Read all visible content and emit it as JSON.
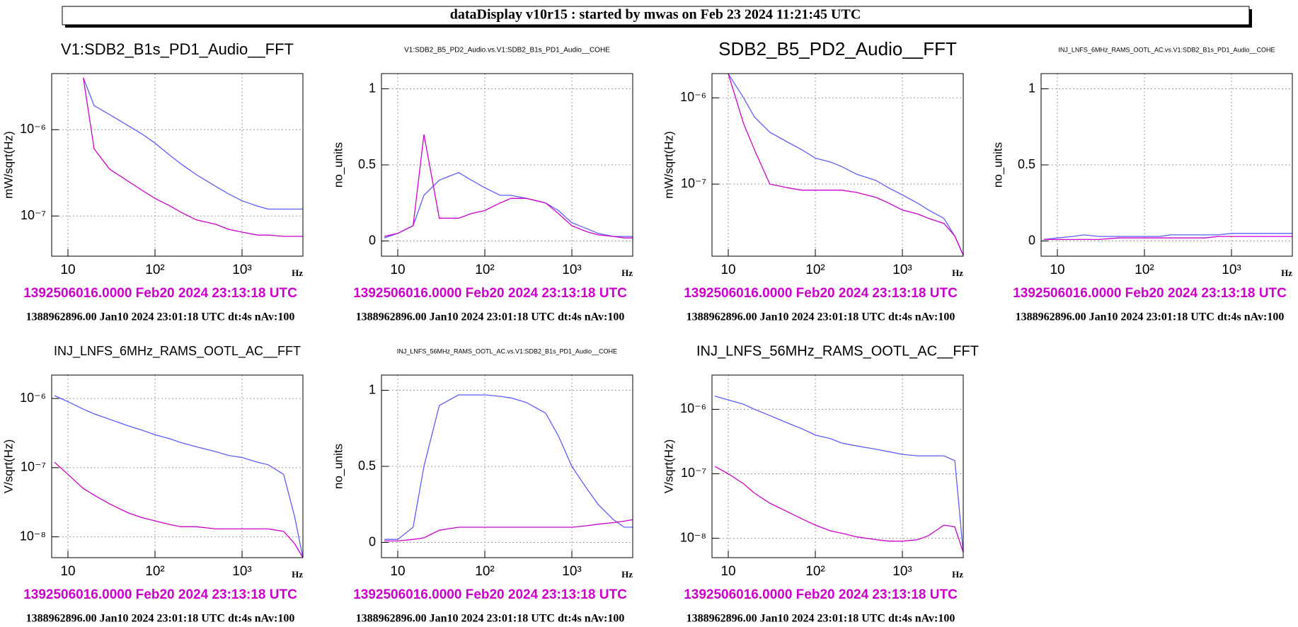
{
  "header": {
    "title": "dataDisplay v10r15 : started by mwas on Feb 23 2024 11:21:45 UTC"
  },
  "chart_data": [
    {
      "type": "line",
      "title": "V1:SDB2_B1s_PD1_Audio__FFT",
      "ylabel": "mW/sqrt(Hz)",
      "xlabel": "Hz",
      "log_x": true,
      "log_y": true,
      "grid": true,
      "xlim": [
        6.5,
        5000
      ],
      "xticks": [
        10,
        {
          "value": 100,
          "label": "10²"
        },
        {
          "value": 1000,
          "label": "10³"
        }
      ],
      "ylim": [
        3.42e-08,
        4.47e-06
      ],
      "yticks": [
        {
          "value": 1e-07,
          "label": "10⁻⁷"
        },
        {
          "value": 1e-06,
          "label": "10⁻⁶"
        }
      ],
      "x": [
        7,
        10,
        15,
        20,
        30,
        50,
        70,
        100,
        150,
        200,
        300,
        500,
        700,
        1000,
        1500,
        2000,
        3000,
        4000,
        5000
      ],
      "series": [
        {
          "color": "#5c5cff",
          "values": [
            null,
            null,
            4e-06,
            1.9e-06,
            1.5e-06,
            1.1e-06,
            9e-07,
            7e-07,
            5e-07,
            4e-07,
            3e-07,
            2.2e-07,
            1.8e-07,
            1.5e-07,
            1.3e-07,
            1.2e-07,
            1.2e-07,
            1.2e-07,
            1.2e-07
          ]
        },
        {
          "color": "#cc00cc",
          "values": [
            null,
            null,
            4e-06,
            6e-07,
            3.5e-07,
            2.5e-07,
            2e-07,
            1.6e-07,
            1.3e-07,
            1.1e-07,
            9e-08,
            8e-08,
            7e-08,
            6.5e-08,
            6e-08,
            6e-08,
            5.8e-08,
            5.8e-08,
            5.8e-08
          ]
        }
      ],
      "annotations": [
        "1392506016.0000 Feb20 2024 23:13:18 UTC",
        "1388962896.00 Jan10 2024 23:01:18 UTC dt:4s nAv:100"
      ]
    },
    {
      "type": "line",
      "title": "V1:SDB2_B5_PD2_Audio.vs.V1:SDB2_B1s_PD1_Audio__COHE",
      "ylabel": "no_units",
      "xlabel": "Hz",
      "log_x": true,
      "log_y": false,
      "grid": true,
      "xlim": [
        6.5,
        5000
      ],
      "xticks": [
        10,
        {
          "value": 100,
          "label": "10²"
        },
        {
          "value": 1000,
          "label": "10³"
        }
      ],
      "ylim": [
        -0.1,
        1.1
      ],
      "yticks": [
        0,
        0.5,
        1
      ],
      "x": [
        7,
        10,
        15,
        20,
        30,
        50,
        70,
        100,
        150,
        200,
        300,
        500,
        700,
        1000,
        1500,
        2000,
        3000,
        4000,
        5000
      ],
      "series": [
        {
          "color": "#5c5cff",
          "values": [
            0.02,
            0.05,
            0.1,
            0.3,
            0.4,
            0.45,
            0.4,
            0.35,
            0.3,
            0.3,
            0.28,
            0.25,
            0.2,
            0.12,
            0.08,
            0.05,
            0.03,
            0.03,
            0.03
          ]
        },
        {
          "color": "#cc00cc",
          "values": [
            0.03,
            0.05,
            0.1,
            0.7,
            0.15,
            0.15,
            0.18,
            0.2,
            0.25,
            0.28,
            0.28,
            0.25,
            0.18,
            0.1,
            0.06,
            0.04,
            0.03,
            0.02,
            0.02
          ]
        }
      ],
      "annotations": [
        "1392506016.0000 Feb20 2024 23:13:18 UTC",
        "1388962896.00 Jan10 2024 23:01:18 UTC dt:4s nAv:100"
      ]
    },
    {
      "type": "line",
      "title": "SDB2_B5_PD2_Audio__FFT",
      "ylabel": "mW/sqrt(Hz)",
      "xlabel": "Hz",
      "log_x": true,
      "log_y": true,
      "grid": true,
      "xlim": [
        6.5,
        5000
      ],
      "xticks": [
        10,
        {
          "value": 100,
          "label": "10²"
        },
        {
          "value": 1000,
          "label": "10³"
        }
      ],
      "ylim": [
        1.46e-08,
        1.91e-06
      ],
      "yticks": [
        {
          "value": 1e-07,
          "label": "10⁻⁷"
        },
        {
          "value": 1e-06,
          "label": "10⁻⁶"
        }
      ],
      "x": [
        7,
        10,
        15,
        20,
        30,
        50,
        70,
        100,
        150,
        200,
        300,
        500,
        700,
        1000,
        1500,
        2000,
        3000,
        4000,
        5000
      ],
      "series": [
        {
          "color": "#5c5cff",
          "values": [
            null,
            1.9e-06,
            1e-06,
            6e-07,
            4e-07,
            3e-07,
            2.5e-07,
            2e-07,
            1.8e-07,
            1.6e-07,
            1.3e-07,
            1.1e-07,
            9e-08,
            7.5e-08,
            6e-08,
            5e-08,
            4e-08,
            2.5e-08,
            1.5e-08
          ]
        },
        {
          "color": "#cc00cc",
          "values": [
            null,
            1.9e-06,
            5e-07,
            2.5e-07,
            1e-07,
            9e-08,
            8.5e-08,
            8.5e-08,
            8.5e-08,
            8.5e-08,
            8e-08,
            7e-08,
            6e-08,
            5e-08,
            4.5e-08,
            4e-08,
            3.5e-08,
            2.5e-08,
            1.5e-08
          ]
        }
      ],
      "annotations": [
        "1392506016.0000 Feb20 2024 23:13:18 UTC",
        "1388962896.00 Jan10 2024 23:01:18 UTC dt:4s nAv:100"
      ]
    },
    {
      "type": "line",
      "title": "INJ_LNFS_6MHz_RAMS_OOTL_AC.vs.V1:SDB2_B1s_PD1_Audio__COHE",
      "ylabel": "no_units",
      "xlabel": "Hz",
      "log_x": true,
      "log_y": false,
      "grid": true,
      "xlim": [
        6.5,
        5000
      ],
      "xticks": [
        10,
        {
          "value": 100,
          "label": "10²"
        },
        {
          "value": 1000,
          "label": "10³"
        }
      ],
      "ylim": [
        -0.1,
        1.1
      ],
      "yticks": [
        0,
        0.5,
        1
      ],
      "x": [
        7,
        10,
        15,
        20,
        30,
        50,
        70,
        100,
        150,
        200,
        300,
        500,
        700,
        1000,
        1500,
        2000,
        3000,
        4000,
        5000
      ],
      "series": [
        {
          "color": "#5c5cff",
          "values": [
            0.01,
            0.02,
            0.03,
            0.04,
            0.03,
            0.03,
            0.03,
            0.03,
            0.03,
            0.04,
            0.04,
            0.04,
            0.04,
            0.05,
            0.05,
            0.05,
            0.05,
            0.05,
            0.05
          ]
        },
        {
          "color": "#cc00cc",
          "values": [
            0.01,
            0.01,
            0.01,
            0.01,
            0.01,
            0.02,
            0.02,
            0.02,
            0.02,
            0.02,
            0.02,
            0.02,
            0.03,
            0.03,
            0.03,
            0.03,
            0.03,
            0.03,
            0.03
          ]
        }
      ],
      "annotations": [
        "1392506016.0000 Feb20 2024 23:13:18 UTC",
        "1388962896.00 Jan10 2024 23:01:18 UTC dt:4s nAv:100"
      ]
    },
    {
      "type": "line",
      "title": "INJ_LNFS_6MHz_RAMS_OOTL_AC__FFT",
      "ylabel": "V/sqrt(Hz)",
      "xlabel": "Hz",
      "log_x": true,
      "log_y": true,
      "grid": true,
      "xlim": [
        6.5,
        5000
      ],
      "xticks": [
        10,
        {
          "value": 100,
          "label": "10²"
        },
        {
          "value": 1000,
          "label": "10³"
        }
      ],
      "ylim": [
        5e-09,
        2.18e-06
      ],
      "yticks": [
        {
          "value": 1e-08,
          "label": "10⁻⁸"
        },
        {
          "value": 1e-07,
          "label": "10⁻⁷"
        },
        {
          "value": 1e-06,
          "label": "10⁻⁶"
        }
      ],
      "x": [
        7,
        10,
        15,
        20,
        30,
        50,
        70,
        100,
        150,
        200,
        300,
        500,
        700,
        1000,
        1500,
        2000,
        3000,
        4000,
        5000
      ],
      "series": [
        {
          "color": "#5c5cff",
          "values": [
            1.1e-06,
            9e-07,
            7e-07,
            6e-07,
            5e-07,
            4e-07,
            3.5e-07,
            3e-07,
            2.6e-07,
            2.3e-07,
            2e-07,
            1.7e-07,
            1.5e-07,
            1.4e-07,
            1.2e-07,
            1.1e-07,
            8e-08,
            2e-08,
            5e-09
          ]
        },
        {
          "color": "#cc00cc",
          "values": [
            1.2e-07,
            8e-08,
            5e-08,
            4e-08,
            3e-08,
            2.2e-08,
            1.9e-08,
            1.7e-08,
            1.5e-08,
            1.4e-08,
            1.4e-08,
            1.3e-08,
            1.3e-08,
            1.3e-08,
            1.3e-08,
            1.3e-08,
            1.2e-08,
            8e-09,
            5e-09
          ]
        }
      ],
      "annotations": [
        "1392506016.0000 Feb20 2024 23:13:18 UTC",
        "1388962896.00 Jan10 2024 23:01:18 UTC dt:4s nAv:100"
      ]
    },
    {
      "type": "line",
      "title": "INJ_LNFS_56MHz_RAMS_OOTL_AC.vs.V1:SDB2_B1s_PD1_Audio__COHE",
      "ylabel": "no_units",
      "xlabel": "Hz",
      "log_x": true,
      "log_y": false,
      "grid": true,
      "xlim": [
        6.5,
        5000
      ],
      "xticks": [
        10,
        {
          "value": 100,
          "label": "10²"
        },
        {
          "value": 1000,
          "label": "10³"
        }
      ],
      "ylim": [
        -0.1,
        1.1
      ],
      "yticks": [
        0,
        0.5,
        1
      ],
      "x": [
        7,
        10,
        15,
        20,
        30,
        50,
        70,
        100,
        150,
        200,
        300,
        500,
        700,
        1000,
        1500,
        2000,
        3000,
        4000,
        5000
      ],
      "series": [
        {
          "color": "#5c5cff",
          "values": [
            0.02,
            0.02,
            0.1,
            0.5,
            0.9,
            0.97,
            0.97,
            0.97,
            0.96,
            0.95,
            0.92,
            0.85,
            0.7,
            0.5,
            0.35,
            0.25,
            0.15,
            0.1,
            0.1
          ]
        },
        {
          "color": "#cc00cc",
          "values": [
            0.01,
            0.01,
            0.02,
            0.03,
            0.08,
            0.1,
            0.1,
            0.1,
            0.1,
            0.1,
            0.1,
            0.1,
            0.1,
            0.1,
            0.11,
            0.12,
            0.13,
            0.14,
            0.15
          ]
        }
      ],
      "annotations": [
        "1392506016.0000 Feb20 2024 23:13:18 UTC",
        "1388962896.00 Jan10 2024 23:01:18 UTC dt:4s nAv:100"
      ]
    },
    {
      "type": "line",
      "title": "INJ_LNFS_56MHz_RAMS_OOTL_AC__FFT",
      "ylabel": "V/sqrt(Hz)",
      "xlabel": "Hz",
      "log_x": true,
      "log_y": true,
      "grid": true,
      "xlim": [
        6.5,
        5000
      ],
      "xticks": [
        10,
        {
          "value": 100,
          "label": "10²"
        },
        {
          "value": 1000,
          "label": "10³"
        }
      ],
      "ylim": [
        5e-09,
        3.4e-06
      ],
      "yticks": [
        {
          "value": 1e-08,
          "label": "10⁻⁸"
        },
        {
          "value": 1e-07,
          "label": "10⁻⁷"
        },
        {
          "value": 1e-06,
          "label": "10⁻⁶"
        }
      ],
      "x": [
        7,
        10,
        15,
        20,
        30,
        50,
        70,
        100,
        150,
        200,
        300,
        500,
        700,
        1000,
        1500,
        2000,
        3000,
        4000,
        5000
      ],
      "series": [
        {
          "color": "#5c5cff",
          "values": [
            1.6e-06,
            1.4e-06,
            1.2e-06,
            1e-06,
            8e-07,
            6e-07,
            5e-07,
            4e-07,
            3.5e-07,
            3e-07,
            2.7e-07,
            2.4e-07,
            2.2e-07,
            2e-07,
            1.9e-07,
            1.9e-07,
            1.9e-07,
            1.6e-07,
            6e-09
          ]
        },
        {
          "color": "#cc00cc",
          "values": [
            1.3e-07,
            1e-07,
            7e-08,
            5e-08,
            3.5e-08,
            2.5e-08,
            2e-08,
            1.6e-08,
            1.3e-08,
            1.2e-08,
            1.05e-08,
            9.5e-09,
            9e-09,
            9e-09,
            9.5e-09,
            1.1e-08,
            1.6e-08,
            1.5e-08,
            6e-09
          ]
        }
      ],
      "annotations": [
        "1392506016.0000 Feb20 2024 23:13:18 UTC",
        "1388962896.00 Jan10 2024 23:01:18 UTC dt:4s nAv:100"
      ]
    }
  ]
}
